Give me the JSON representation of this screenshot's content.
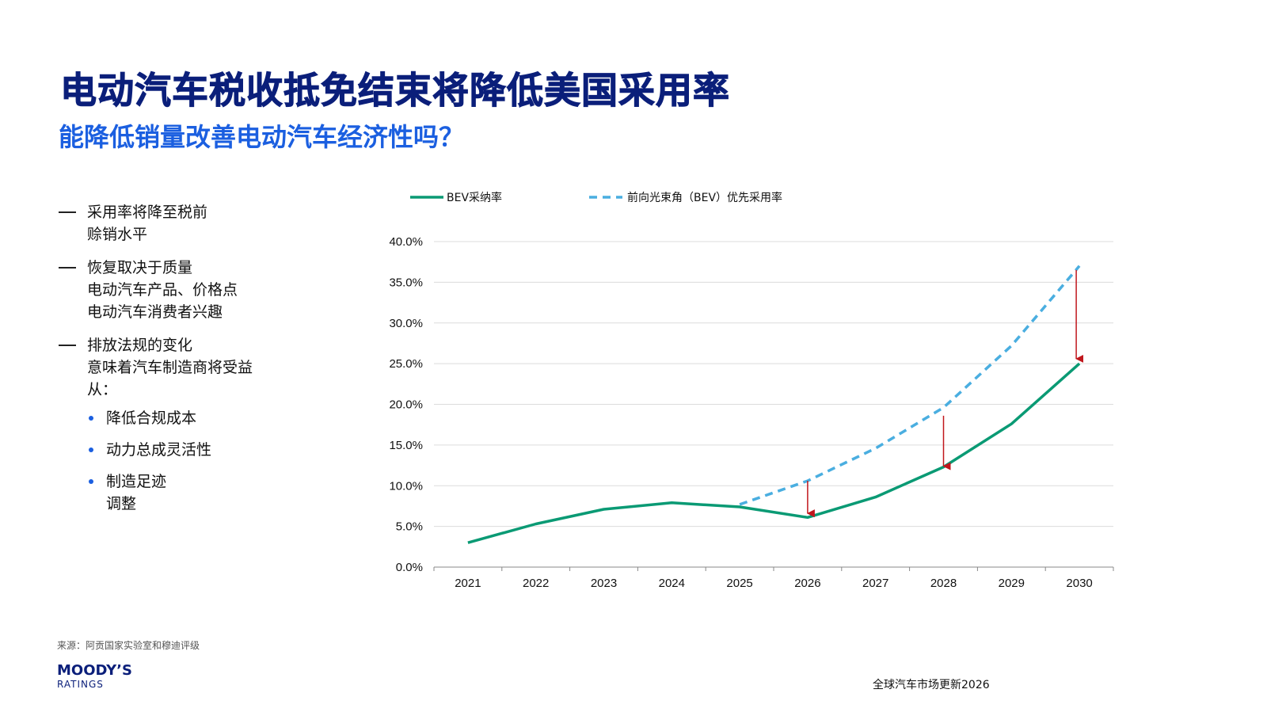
{
  "header": {
    "title": "电动汽车税收抵免结束将降低美国采用率",
    "subtitle": "能降低销量改善电动汽车经济性吗？"
  },
  "bullets": [
    {
      "lines": [
        "采用率将降至税前",
        "赊销水平"
      ]
    },
    {
      "lines": [
        "恢复取决于质量",
        "电动汽车产品、价格点",
        "电动汽车消费者兴趣"
      ]
    },
    {
      "lines": [
        "排放法规的变化",
        "意味着汽车制造商将受益",
        "从："
      ],
      "sub": [
        {
          "lines": [
            "降低合规成本"
          ]
        },
        {
          "lines": [
            "动力总成灵活性"
          ]
        },
        {
          "lines": [
            "制造足迹",
            "调整"
          ]
        }
      ]
    }
  ],
  "chart_data": {
    "type": "line",
    "categories": [
      "2021",
      "2022",
      "2023",
      "2024",
      "2025",
      "2026",
      "2027",
      "2028",
      "2029",
      "2030"
    ],
    "series": [
      {
        "name": "BEV采纳率",
        "style": "solid",
        "color": "#0a9a74",
        "values": [
          3.0,
          5.3,
          7.1,
          7.9,
          7.4,
          6.1,
          8.6,
          12.3,
          17.6,
          25.0
        ]
      },
      {
        "name": "前向光束角（BEV）优先采用率",
        "style": "dashed",
        "color": "#4aaee0",
        "values": [
          null,
          null,
          null,
          null,
          7.7,
          10.6,
          14.6,
          19.6,
          27.2,
          37.0
        ]
      }
    ],
    "yticks": [
      "0.0%",
      "5.0%",
      "10.0%",
      "15.0%",
      "20.0%",
      "25.0%",
      "30.0%",
      "35.0%",
      "40.0%"
    ],
    "ylim": [
      0,
      40
    ],
    "arrows": [
      {
        "category": "2026",
        "from": 10.6,
        "to": 6.6
      },
      {
        "category": "2028",
        "from": 18.6,
        "to": 12.4
      },
      {
        "category": "2030",
        "from": 36.5,
        "to": 25.6
      }
    ],
    "arrow_color": "#c0161c",
    "grid": true,
    "legend_position": "top"
  },
  "footer": {
    "source": "来源：阿贡国家实验室和穆迪评级",
    "logo_main": "MOODY’S",
    "logo_sub": "RATINGS",
    "report": "全球汽车市场更新2026"
  }
}
